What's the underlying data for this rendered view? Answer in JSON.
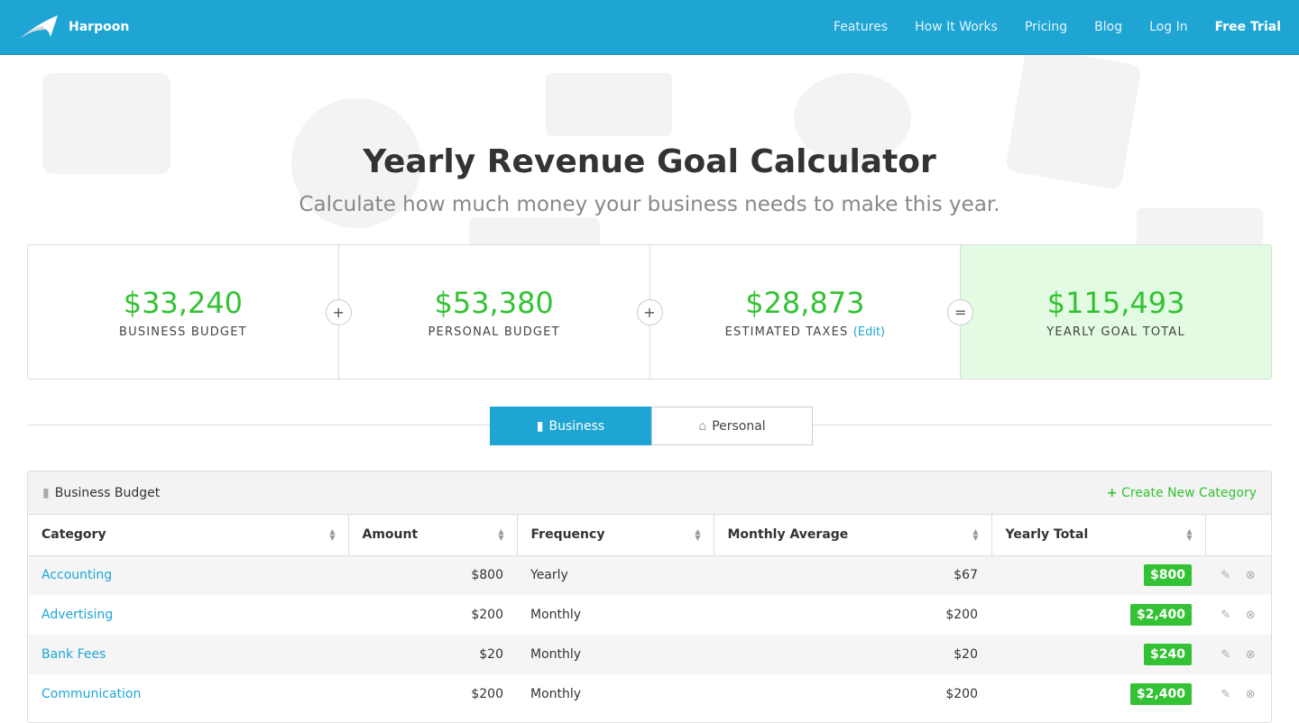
{
  "nav": {
    "brand": "Harpoon",
    "links": [
      "Features",
      "How It Works",
      "Pricing",
      "Blog",
      "Log In"
    ],
    "cta": "Free Trial",
    "color": "#1ea5d4"
  },
  "hero": {
    "title": "Yearly Revenue Goal Calculator",
    "subtitle": "Calculate how much money your business needs to make this year."
  },
  "summary": [
    {
      "value": "$33,240",
      "label": "BUSINESS BUDGET",
      "op": "+"
    },
    {
      "value": "$53,380",
      "label": "PERSONAL BUDGET",
      "op": "+"
    },
    {
      "value": "$28,873",
      "label": "ESTIMATED TAXES",
      "edit": "(Edit)",
      "op": "="
    },
    {
      "value": "$115,493",
      "label": "YEARLY GOAL TOTAL"
    }
  ],
  "tabs": [
    {
      "label": "Business",
      "active": true
    },
    {
      "label": "Personal"
    }
  ],
  "panel": {
    "title": "Business Budget",
    "create": "Create New Category",
    "columns": [
      "Category",
      "Amount",
      "Frequency",
      "Monthly Average",
      "Yearly Total"
    ],
    "rows": [
      {
        "category": "Accounting",
        "amount": "$800",
        "frequency": "Yearly",
        "monthly": "$67",
        "yearly": "$800"
      },
      {
        "category": "Advertising",
        "amount": "$200",
        "frequency": "Monthly",
        "monthly": "$200",
        "yearly": "$2,400"
      },
      {
        "category": "Bank Fees",
        "amount": "$20",
        "frequency": "Monthly",
        "monthly": "$20",
        "yearly": "$240"
      },
      {
        "category": "Communication",
        "amount": "$200",
        "frequency": "Monthly",
        "monthly": "$200",
        "yearly": "$2,400"
      }
    ]
  }
}
